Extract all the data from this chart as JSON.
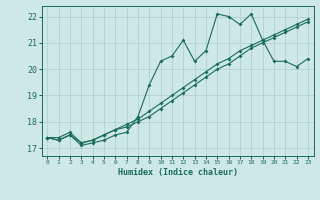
{
  "xlabel": "Humidex (Indice chaleur)",
  "ylabel": "",
  "xlim": [
    -0.5,
    23.5
  ],
  "ylim": [
    16.7,
    22.4
  ],
  "xticks": [
    0,
    1,
    2,
    3,
    4,
    5,
    6,
    7,
    8,
    9,
    10,
    11,
    12,
    13,
    14,
    15,
    16,
    17,
    18,
    19,
    20,
    21,
    22,
    23
  ],
  "yticks": [
    17,
    18,
    19,
    20,
    21,
    22
  ],
  "bg_color": "#cde8e5",
  "grid_color": "#aacfcc",
  "line_color": "#1a6b5e",
  "line1_x": [
    0,
    1,
    2,
    3,
    4,
    5,
    6,
    7,
    8,
    9,
    10,
    11,
    12,
    13,
    14,
    15,
    16,
    17,
    18,
    19,
    20,
    21,
    22,
    23
  ],
  "line1_y": [
    17.4,
    17.3,
    17.5,
    17.1,
    17.2,
    17.3,
    17.5,
    17.6,
    18.2,
    19.4,
    20.3,
    20.5,
    21.1,
    20.3,
    20.7,
    22.1,
    22.0,
    21.7,
    22.1,
    21.1,
    20.3,
    20.3,
    20.1,
    20.4
  ],
  "line2_x": [
    0,
    1,
    2,
    3,
    4,
    5,
    6,
    7,
    8,
    9,
    10,
    11,
    12,
    13,
    14,
    15,
    16,
    17,
    18,
    19,
    20,
    21,
    22,
    23
  ],
  "line2_y": [
    17.4,
    17.3,
    17.5,
    17.2,
    17.3,
    17.5,
    17.7,
    17.8,
    18.0,
    18.2,
    18.5,
    18.8,
    19.1,
    19.4,
    19.7,
    20.0,
    20.2,
    20.5,
    20.8,
    21.0,
    21.2,
    21.4,
    21.6,
    21.8
  ],
  "line3_x": [
    0,
    1,
    2,
    3,
    4,
    5,
    6,
    7,
    8,
    9,
    10,
    11,
    12,
    13,
    14,
    15,
    16,
    17,
    18,
    19,
    20,
    21,
    22,
    23
  ],
  "line3_y": [
    17.4,
    17.4,
    17.6,
    17.2,
    17.3,
    17.5,
    17.7,
    17.9,
    18.1,
    18.4,
    18.7,
    19.0,
    19.3,
    19.6,
    19.9,
    20.2,
    20.4,
    20.7,
    20.9,
    21.1,
    21.3,
    21.5,
    21.7,
    21.9
  ]
}
